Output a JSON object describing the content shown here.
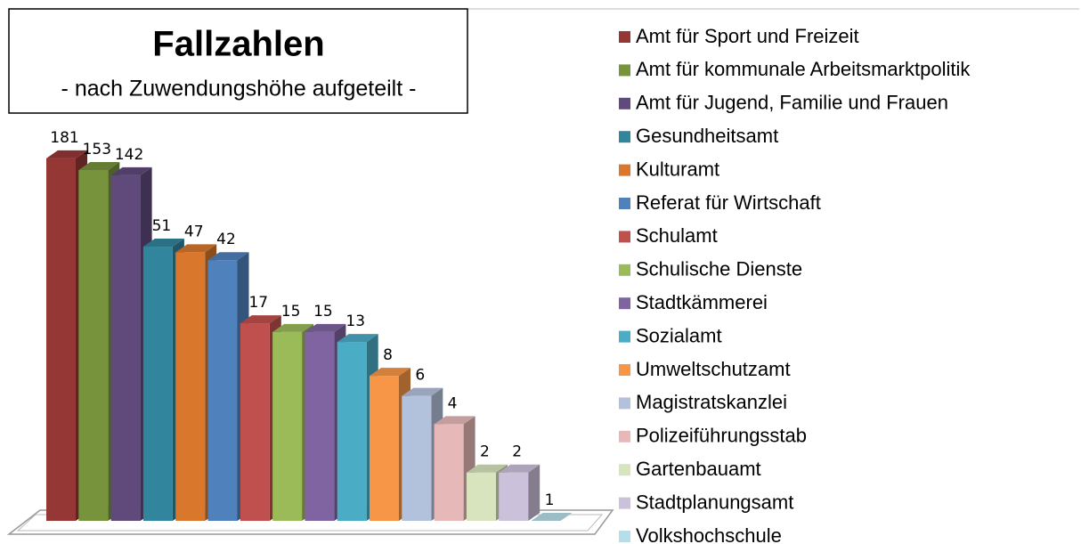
{
  "chart_data": {
    "type": "bar3d",
    "title": "Fallzahlen",
    "subtitle": "- nach Zuwendungshöhe aufgeteilt -",
    "log_scale": true,
    "ylim": [
      1,
      200
    ],
    "legend": "right",
    "categories": [
      "Amt für Sport und Freizeit",
      "Amt für kommunale Arbeitsmarktpolitik",
      "Amt für Jugend, Familie und Frauen",
      "Gesundheitsamt",
      "Kulturamt",
      "Referat für Wirtschaft",
      "Schulamt",
      "Schulische Dienste",
      "Stadtkämmerei",
      "Sozialamt",
      "Umweltschutzamt",
      "Magistratskanzlei",
      "Polizeiführungsstab",
      "Gartenbauamt",
      "Stadtplanungsamt",
      "Volkshochschule"
    ],
    "values": [
      181,
      153,
      142,
      51,
      47,
      42,
      17,
      15,
      15,
      13,
      8,
      6,
      4,
      2,
      2,
      1
    ],
    "colors": [
      "#953735",
      "#77933c",
      "#604a7b",
      "#31859c",
      "#d9782d",
      "#4f81bd",
      "#c0504d",
      "#9bbb59",
      "#8064a2",
      "#4bacc6",
      "#f79646",
      "#b3c2dc",
      "#e6b9b8",
      "#d7e4bd",
      "#ccc1da",
      "#b7dee8"
    ]
  }
}
